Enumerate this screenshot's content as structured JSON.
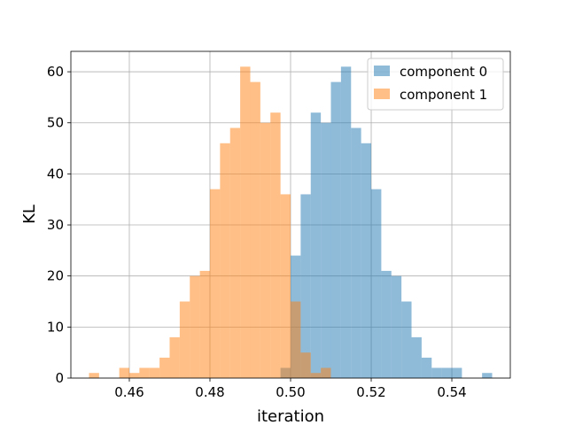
{
  "chart_data": {
    "type": "histogram",
    "xlabel": "iteration",
    "ylabel": "KL",
    "xlim": [
      0.4455,
      0.5545
    ],
    "ylim": [
      0,
      64
    ],
    "xticks": [
      0.46,
      0.48,
      0.5,
      0.52,
      0.54
    ],
    "xtick_labels": [
      "0.46",
      "0.48",
      "0.50",
      "0.52",
      "0.54"
    ],
    "yticks": [
      0,
      10,
      20,
      30,
      40,
      50,
      60
    ],
    "ytick_labels": [
      "0",
      "10",
      "20",
      "30",
      "40",
      "50",
      "60"
    ],
    "grid": true,
    "legend_position": "upper right",
    "series": [
      {
        "name": "component 0",
        "color": "#1f77b4",
        "alpha": 0.5,
        "bins": [
          [
            0.4975,
            0.5,
            2
          ],
          [
            0.5,
            0.5025,
            24
          ],
          [
            0.5025,
            0.505,
            36
          ],
          [
            0.505,
            0.5075,
            52
          ],
          [
            0.5075,
            0.51,
            50
          ],
          [
            0.51,
            0.5125,
            58
          ],
          [
            0.5125,
            0.515,
            61
          ],
          [
            0.515,
            0.5175,
            49
          ],
          [
            0.5175,
            0.52,
            46
          ],
          [
            0.52,
            0.5225,
            37
          ],
          [
            0.5225,
            0.525,
            21
          ],
          [
            0.525,
            0.5275,
            20
          ],
          [
            0.5275,
            0.53,
            15
          ],
          [
            0.53,
            0.5325,
            8
          ],
          [
            0.5325,
            0.535,
            4
          ],
          [
            0.535,
            0.5375,
            2
          ],
          [
            0.5375,
            0.54,
            2
          ],
          [
            0.54,
            0.5425,
            2
          ],
          [
            0.5475,
            0.55,
            1
          ]
        ]
      },
      {
        "name": "component 1",
        "color": "#ff7f0e",
        "alpha": 0.5,
        "bins": [
          [
            0.45,
            0.4525,
            1
          ],
          [
            0.4575,
            0.46,
            2
          ],
          [
            0.46,
            0.4625,
            1
          ],
          [
            0.4625,
            0.465,
            2
          ],
          [
            0.465,
            0.4675,
            2
          ],
          [
            0.4675,
            0.47,
            4
          ],
          [
            0.47,
            0.4725,
            8
          ],
          [
            0.4725,
            0.475,
            15
          ],
          [
            0.475,
            0.4775,
            20
          ],
          [
            0.4775,
            0.48,
            21
          ],
          [
            0.48,
            0.4825,
            37
          ],
          [
            0.4825,
            0.485,
            46
          ],
          [
            0.485,
            0.4875,
            49
          ],
          [
            0.4875,
            0.49,
            61
          ],
          [
            0.49,
            0.4925,
            58
          ],
          [
            0.4925,
            0.495,
            50
          ],
          [
            0.495,
            0.4975,
            52
          ],
          [
            0.4975,
            0.5,
            36
          ],
          [
            0.5,
            0.5025,
            15
          ],
          [
            0.5025,
            0.505,
            5
          ],
          [
            0.505,
            0.5075,
            1
          ],
          [
            0.5075,
            0.51,
            2
          ]
        ]
      }
    ]
  }
}
